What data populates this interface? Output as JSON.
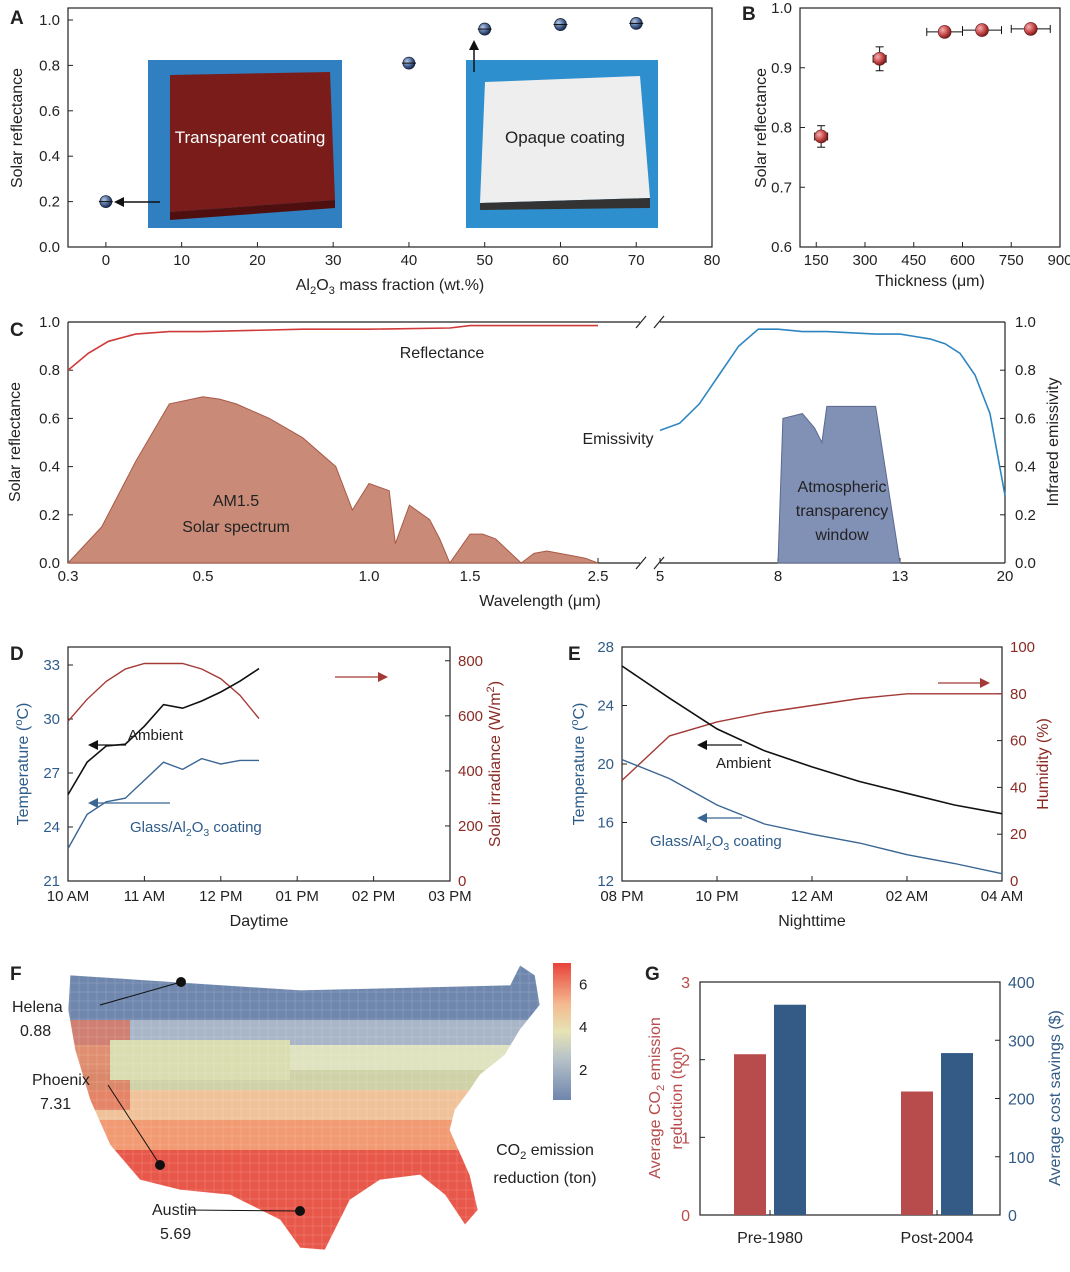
{
  "figure_title": "Solar reflectance, emissivity, temperature and CO2 emission reduction of Glass/Al2O3 coating",
  "chart_data": [
    {
      "panel": "A",
      "type": "scatter",
      "xlabel": "Al2O3 mass fraction (wt.%)",
      "ylabel": "Solar reflectance",
      "xlim": [
        -5,
        80
      ],
      "ylim": [
        0,
        1.0
      ],
      "xticks": [
        0,
        10,
        20,
        30,
        40,
        50,
        60,
        70,
        80
      ],
      "yticks": [
        0.0,
        0.2,
        0.4,
        0.6,
        0.8,
        1.0
      ],
      "x": [
        0,
        40,
        50,
        60,
        70
      ],
      "y": [
        0.2,
        0.81,
        0.96,
        0.98,
        0.985
      ],
      "yerr": [
        0.01,
        0.01,
        0.01,
        0.01,
        0.01
      ],
      "annotations": [
        "Transparent coating",
        "Opaque coating"
      ]
    },
    {
      "panel": "B",
      "type": "scatter",
      "xlabel": "Thickness (μm)",
      "ylabel": "Solar reflectance",
      "xlim": [
        100,
        900
      ],
      "ylim": [
        0.6,
        1.0
      ],
      "xticks": [
        150,
        300,
        450,
        600,
        750,
        900
      ],
      "yticks": [
        0.6,
        0.7,
        0.8,
        0.9,
        1.0
      ],
      "x": [
        165,
        345,
        545,
        660,
        810
      ],
      "y": [
        0.785,
        0.915,
        0.96,
        0.963,
        0.965
      ],
      "xerr": [
        20,
        20,
        55,
        60,
        60
      ],
      "yerr": [
        0.018,
        0.02,
        0.004,
        0.004,
        0.004
      ]
    },
    {
      "panel": "C",
      "type": "line",
      "xlabel": "Wavelength (μm)",
      "ylabel_left": "Solar reflectance",
      "ylabel_right": "Infrared emissivity",
      "ylim": [
        0,
        1.0
      ],
      "xticks_left": [
        "0.3",
        "0.5",
        "1.0",
        "1.5",
        "2.5"
      ],
      "xticks_right": [
        "5",
        "8",
        "13",
        "20"
      ],
      "yticks": [
        "0.0",
        "0.2",
        "0.4",
        "0.6",
        "0.8",
        "1.0"
      ],
      "series": [
        {
          "name": "Reflectance",
          "x": [
            0.3,
            0.33,
            0.36,
            0.4,
            0.45,
            0.5,
            0.8,
            1.0,
            1.4,
            1.5,
            2.0,
            2.5
          ],
          "y": [
            0.8,
            0.87,
            0.92,
            0.95,
            0.96,
            0.96,
            0.97,
            0.97,
            0.975,
            0.985,
            0.985,
            0.985
          ]
        },
        {
          "name": "Emissivity",
          "x": [
            5,
            5.5,
            6,
            6.5,
            7,
            7.5,
            8,
            9,
            10,
            11,
            12,
            13,
            14,
            15,
            16,
            17,
            18,
            19,
            20
          ],
          "y": [
            0.55,
            0.58,
            0.66,
            0.78,
            0.9,
            0.97,
            0.97,
            0.96,
            0.96,
            0.955,
            0.95,
            0.95,
            0.94,
            0.93,
            0.91,
            0.87,
            0.78,
            0.62,
            0.28
          ]
        },
        {
          "name": "AM1.5 Solar spectrum",
          "x": [
            0.3,
            0.35,
            0.4,
            0.45,
            0.5,
            0.55,
            0.6,
            0.7,
            0.8,
            0.9,
            0.95,
            1.0,
            1.1,
            1.13,
            1.2,
            1.3,
            1.35,
            1.4,
            1.5,
            1.6,
            1.7,
            1.8,
            1.9,
            2.0,
            2.1,
            2.2,
            2.3,
            2.4,
            2.5
          ],
          "y": [
            0.0,
            0.15,
            0.42,
            0.66,
            0.69,
            0.68,
            0.66,
            0.6,
            0.52,
            0.4,
            0.22,
            0.33,
            0.3,
            0.08,
            0.24,
            0.18,
            0.1,
            0.0,
            0.12,
            0.12,
            0.1,
            0.05,
            0.0,
            0.04,
            0.05,
            0.04,
            0.03,
            0.02,
            0.0
          ]
        },
        {
          "name": "Atmospheric transparency window",
          "x": [
            8,
            8.2,
            9,
            9.5,
            9.8,
            10,
            11,
            12,
            13
          ],
          "y": [
            0.0,
            0.6,
            0.62,
            0.56,
            0.5,
            0.65,
            0.65,
            0.65,
            0.0
          ]
        }
      ],
      "labels": {
        "reflectance": "Reflectance",
        "emissivity": "Emissivity",
        "am15_line1": "AM1.5",
        "am15_line2": "Solar spectrum",
        "atm_line1": "Atmospheric",
        "atm_line2": "transparency",
        "atm_line3": "window"
      }
    },
    {
      "panel": "D",
      "type": "line",
      "xlabel": "Daytime",
      "ylabel_left": "Temperature (°C)",
      "ylabel_right": "Solar irradiance (W/m²)",
      "xticks": [
        "10 AM",
        "11 AM",
        "12 PM",
        "01 PM",
        "02 PM",
        "03 PM"
      ],
      "ylim_left": [
        21,
        34
      ],
      "yticks_left": [
        21,
        24,
        27,
        30,
        33
      ],
      "ylim_right": [
        0,
        850
      ],
      "yticks_right": [
        0,
        200,
        400,
        600,
        800
      ],
      "x_hours": [
        0,
        0.5,
        1,
        1.5,
        2,
        2.5,
        3,
        3.5,
        4,
        4.5,
        5
      ],
      "series": [
        {
          "name": "Ambient",
          "y": [
            25.8,
            27.6,
            28.5,
            28.6,
            29.6,
            30.8,
            30.6,
            31.0,
            31.5,
            32.1,
            32.8
          ]
        },
        {
          "name": "Glass/Al2O3 coating",
          "y": [
            22.8,
            24.7,
            25.4,
            25.6,
            26.6,
            27.6,
            27.2,
            27.8,
            27.5,
            27.7,
            27.7
          ]
        },
        {
          "name": "Solar irradiance",
          "y": [
            580,
            660,
            725,
            770,
            790,
            790,
            790,
            770,
            735,
            675,
            590
          ]
        }
      ],
      "labels": {
        "ambient": "Ambient",
        "coating": "Glass/Al2O3 coating"
      }
    },
    {
      "panel": "E",
      "type": "line",
      "xlabel": "Nighttime",
      "ylabel_left": "Temperature (°C)",
      "ylabel_right": "Humidity (%)",
      "xticks": [
        "08 PM",
        "10 PM",
        "12 AM",
        "02 AM",
        "04 AM"
      ],
      "ylim_left": [
        12,
        28
      ],
      "yticks_left": [
        12,
        16,
        20,
        24,
        28
      ],
      "ylim_right": [
        0,
        100
      ],
      "yticks_right": [
        0,
        20,
        40,
        60,
        80,
        100
      ],
      "x_hours": [
        0,
        1,
        2,
        3,
        4,
        5,
        6,
        7,
        8
      ],
      "series": [
        {
          "name": "Ambient",
          "y": [
            26.7,
            24.5,
            22.4,
            20.9,
            19.8,
            18.8,
            18.0,
            17.2,
            16.6
          ]
        },
        {
          "name": "Glass/Al2O3 coating",
          "y": [
            20.3,
            19.0,
            17.2,
            15.9,
            15.2,
            14.6,
            13.8,
            13.2,
            12.5
          ]
        },
        {
          "name": "Humidity",
          "y": [
            43,
            62,
            68,
            72,
            75,
            78,
            80,
            80,
            80
          ]
        }
      ],
      "labels": {
        "ambient": "Ambient",
        "coating": "Glass/Al2O3 coating"
      }
    },
    {
      "panel": "F",
      "type": "heatmap",
      "colorbar_label": "CO2 emission reduction (ton)",
      "colorbar_ticks": [
        2,
        4,
        6
      ],
      "cities": [
        {
          "name": "Helena",
          "value": "0.88"
        },
        {
          "name": "Phoenix",
          "value": "7.31"
        },
        {
          "name": "Austin",
          "value": "5.69"
        }
      ]
    },
    {
      "panel": "G",
      "type": "bar",
      "categories": [
        "Pre-1980",
        "Post-2004"
      ],
      "ylabel_left": "Average CO2 emission reduction (ton)",
      "ylabel_right": "Average cost savings ($)",
      "ylim_left": [
        0,
        3
      ],
      "yticks_left": [
        0,
        1,
        2,
        3
      ],
      "ylim_right": [
        0,
        400
      ],
      "yticks_right": [
        0,
        100,
        200,
        300,
        400
      ],
      "series": [
        {
          "name": "Average CO2 emission reduction (ton)",
          "values": [
            2.07,
            1.59
          ]
        },
        {
          "name": "Average cost savings ($)",
          "values": [
            361,
            278
          ]
        }
      ]
    }
  ],
  "text": {
    "A": "A",
    "B": "B",
    "C": "C",
    "D": "D",
    "E": "E",
    "F": "F",
    "G": "G",
    "transparent_coating": "Transparent coating",
    "opaque_coating": "Opaque coating",
    "colorbar_l1": "CO2 emission",
    "colorbar_l2": "reduction (ton)"
  },
  "colors": {
    "red": "#c0392b",
    "blue": "#2e6fb0",
    "panelD_red": "#a33a36",
    "bar_red": "#b84b4b",
    "bar_blue": "#335b86"
  }
}
